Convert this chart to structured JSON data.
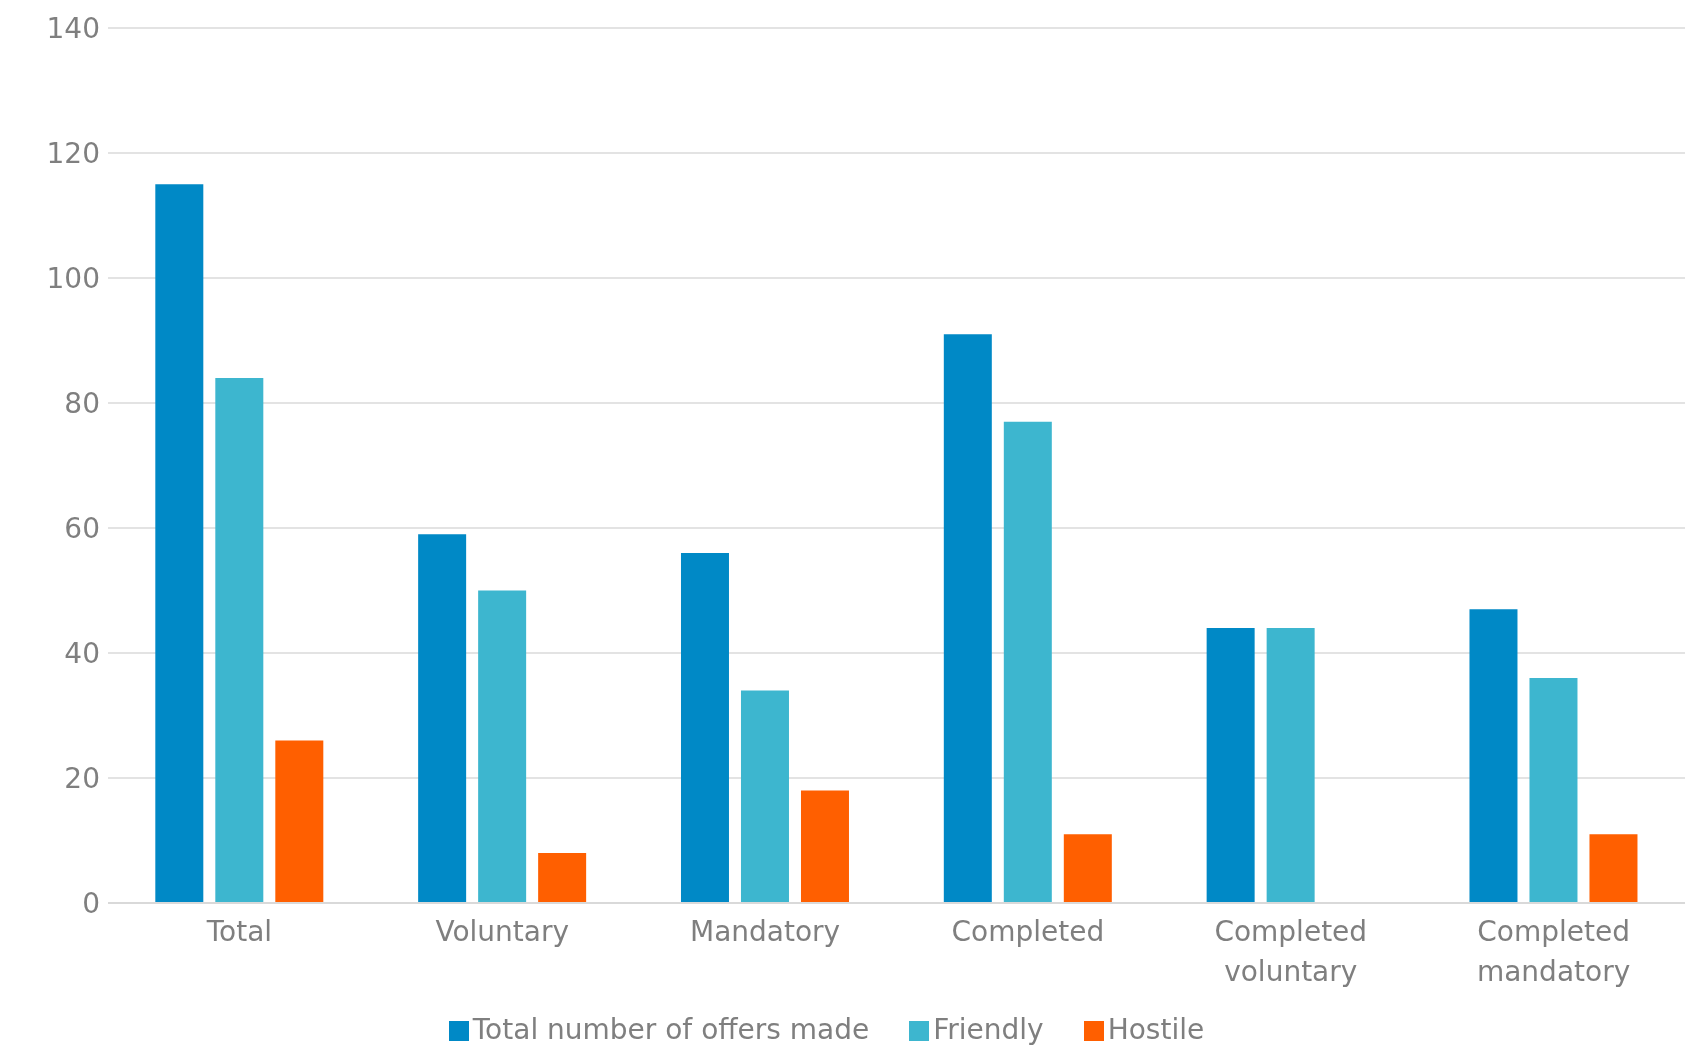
{
  "chart_data": {
    "type": "bar",
    "categories": [
      "Total",
      "Voluntary",
      "Mandatory",
      "Completed",
      "Completed voluntary",
      "Completed mandatory"
    ],
    "series": [
      {
        "name": "Total number of offers made",
        "color": "#0089c6",
        "values": [
          115,
          59,
          56,
          91,
          44,
          47
        ]
      },
      {
        "name": "Friendly",
        "color": "#3db6cf",
        "values": [
          84,
          50,
          34,
          77,
          44,
          36
        ]
      },
      {
        "name": "Hostile",
        "color": "#ff5f00",
        "values": [
          26,
          8,
          18,
          11,
          0,
          11
        ]
      }
    ],
    "ylim": [
      0,
      140
    ],
    "yticks": [
      0,
      20,
      40,
      60,
      80,
      100,
      120,
      140
    ],
    "grid": "y",
    "legend": "bottom"
  }
}
